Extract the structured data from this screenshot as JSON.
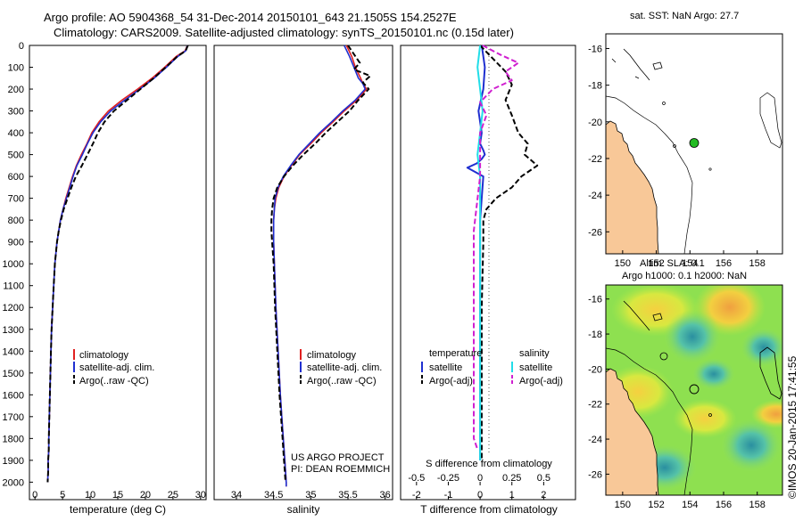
{
  "header": {
    "title_line1": "Argo profile: AO 5904368_54 31-Dec-2014 20150101_643 21.1505S 154.2527E",
    "title_line2": "Climatology: CARS2009. Satellite-adjusted climatology: synTS_20150101.nc (0.15d later)"
  },
  "imos_stamp": "©IMOS 20-Jan-2015 17:41:55",
  "colors": {
    "climatology": "#e02020",
    "satellite": "#1f2fd0",
    "argo": "#000000",
    "sal_satellite": "#22dde8",
    "sal_argo": "#d020d0",
    "land": "#f8c898",
    "marker": "#22bb22"
  },
  "chart_data": [
    {
      "id": "temperature",
      "type": "line",
      "xlabel": "temperature (deg C)",
      "ylabel": "",
      "xlim": [
        -1,
        31
      ],
      "ylim": [
        2080,
        0
      ],
      "xticks": [
        0,
        5,
        10,
        15,
        20,
        25,
        30
      ],
      "yticks": [
        0,
        100,
        200,
        300,
        400,
        500,
        600,
        700,
        800,
        900,
        1000,
        1100,
        1200,
        1300,
        1400,
        1500,
        1600,
        1700,
        1800,
        1900,
        2000
      ],
      "legend": [
        "climatology",
        "satellite-adj. clim.",
        "Argo(..raw -QC)"
      ],
      "legend_position": "lower-right",
      "series": [
        {
          "name": "climatology",
          "style": "solid",
          "x": [
            27.6,
            27.2,
            25.6,
            23.5,
            21.2,
            18.6,
            15.8,
            13.3,
            11.6,
            10.3,
            9.4,
            8.4,
            7.5,
            6.8,
            6.2,
            5.6,
            5.1,
            4.6,
            4.3,
            4.0,
            3.8,
            3.6,
            3.4,
            3.2,
            3.0,
            2.9,
            2.8,
            2.7,
            2.6,
            2.5,
            2.5,
            2.4,
            2.4,
            2.3
          ],
          "y": [
            0,
            25,
            50,
            100,
            150,
            200,
            250,
            300,
            350,
            400,
            450,
            500,
            550,
            600,
            650,
            700,
            750,
            800,
            850,
            900,
            950,
            1000,
            1100,
            1200,
            1300,
            1400,
            1500,
            1600,
            1700,
            1800,
            1850,
            1900,
            1950,
            2000
          ]
        },
        {
          "name": "satellite-adj. clim.",
          "style": "solid",
          "x": [
            27.6,
            27.3,
            25.9,
            23.8,
            21.6,
            19.0,
            16.3,
            13.7,
            11.9,
            10.5,
            9.5,
            8.6,
            7.6,
            6.9,
            6.3,
            5.7,
            5.1,
            4.6,
            4.3,
            4.0,
            3.8,
            3.6,
            3.4,
            3.2,
            3.0,
            2.9,
            2.8,
            2.7,
            2.6,
            2.5,
            2.5,
            2.4,
            2.4,
            2.3
          ],
          "y": [
            0,
            25,
            50,
            100,
            150,
            200,
            250,
            300,
            350,
            400,
            450,
            500,
            550,
            600,
            650,
            700,
            750,
            800,
            850,
            900,
            950,
            1000,
            1100,
            1200,
            1300,
            1400,
            1500,
            1600,
            1700,
            1800,
            1850,
            1900,
            1950,
            2000
          ]
        },
        {
          "name": "Argo(..raw -QC)",
          "style": "dashed",
          "x": [
            27.7,
            27.3,
            25.8,
            23.7,
            21.5,
            19.1,
            16.7,
            14.3,
            12.6,
            11.4,
            10.5,
            9.5,
            8.5,
            7.4,
            6.6,
            5.9,
            5.2,
            4.7,
            4.3,
            4.0,
            3.8,
            3.6,
            3.4,
            3.2,
            3.0,
            2.9,
            2.8,
            2.7,
            2.6,
            2.5,
            2.5,
            2.4,
            2.4,
            2.3
          ],
          "y": [
            0,
            25,
            50,
            100,
            150,
            200,
            250,
            300,
            350,
            400,
            450,
            500,
            550,
            600,
            650,
            700,
            750,
            800,
            850,
            900,
            950,
            1000,
            1100,
            1200,
            1300,
            1400,
            1500,
            1600,
            1700,
            1800,
            1850,
            1900,
            1950,
            2000
          ]
        }
      ]
    },
    {
      "id": "salinity",
      "type": "line",
      "xlabel": "salinity",
      "ylabel": "",
      "xlim": [
        33.7,
        36.1
      ],
      "ylim": [
        2080,
        0
      ],
      "xticks": [
        34,
        34.5,
        35,
        35.5,
        36
      ],
      "legend": [
        "climatology",
        "satellite-adj. clim.",
        "Argo(..raw -QC)"
      ],
      "legend_position": "lower-right",
      "annotation": [
        "US ARGO PROJECT",
        "PI: DEAN ROEMMICH"
      ],
      "series": [
        {
          "name": "climatology",
          "style": "solid",
          "x": [
            35.48,
            35.55,
            35.6,
            35.67,
            35.7,
            35.75,
            35.62,
            35.45,
            35.3,
            35.14,
            35.0,
            34.85,
            34.74,
            34.64,
            34.57,
            34.53,
            34.51,
            34.5,
            34.5,
            34.5,
            34.51,
            34.53,
            34.56,
            34.59,
            34.61,
            34.63,
            34.65,
            34.66,
            34.67,
            34.67
          ],
          "y": [
            0,
            50,
            100,
            150,
            175,
            200,
            250,
            300,
            350,
            400,
            450,
            500,
            550,
            600,
            650,
            700,
            750,
            800,
            850,
            900,
            1000,
            1200,
            1400,
            1600,
            1700,
            1800,
            1900,
            1950,
            2000,
            2020
          ]
        },
        {
          "name": "satellite-adj. clim.",
          "style": "solid",
          "x": [
            35.45,
            35.52,
            35.58,
            35.64,
            35.7,
            35.73,
            35.6,
            35.43,
            35.28,
            35.12,
            34.98,
            34.84,
            34.73,
            34.63,
            34.56,
            34.52,
            34.51,
            34.5,
            34.5,
            34.5,
            34.51,
            34.53,
            34.56,
            34.59,
            34.61,
            34.63,
            34.65,
            34.66,
            34.67,
            34.67
          ],
          "y": [
            0,
            50,
            100,
            150,
            175,
            200,
            250,
            300,
            350,
            400,
            450,
            500,
            550,
            600,
            650,
            700,
            750,
            800,
            850,
            900,
            1000,
            1200,
            1400,
            1600,
            1700,
            1800,
            1900,
            1950,
            2000,
            2020
          ]
        },
        {
          "name": "Argo(..raw -QC)",
          "style": "dashed",
          "x": [
            35.5,
            35.66,
            35.58,
            35.8,
            35.7,
            35.78,
            35.64,
            35.52,
            35.36,
            35.2,
            35.06,
            34.9,
            34.76,
            34.64,
            34.55,
            34.5,
            34.48,
            34.47,
            34.47,
            34.48,
            34.5,
            34.52,
            34.55,
            34.58,
            34.6,
            34.62,
            34.64,
            34.65,
            34.66
          ],
          "y": [
            0,
            80,
            110,
            140,
            170,
            200,
            250,
            300,
            350,
            400,
            450,
            500,
            550,
            600,
            650,
            700,
            750,
            800,
            850,
            900,
            1000,
            1200,
            1400,
            1600,
            1700,
            1800,
            1900,
            1950,
            2000
          ]
        }
      ]
    },
    {
      "id": "differences",
      "type": "line",
      "xlabel": "T difference from climatology",
      "xlabel_top": "S difference from climatology",
      "xlim": [
        -2.5,
        3.0
      ],
      "ylim": [
        2080,
        0
      ],
      "xticks": [
        -2,
        -1,
        0,
        1,
        2
      ],
      "xticks_s": [
        -0.5,
        -0.25,
        0,
        0.25,
        0.5
      ],
      "legend_temperature_title": "temperature",
      "legend_salinity_title": "salinity",
      "legend_temperature": [
        "satellite",
        "Argo(-adj)"
      ],
      "legend_salinity": [
        "satellite",
        "Argo(-adj)"
      ],
      "series": [
        {
          "name": "temperature satellite",
          "style": "solid",
          "x": [
            0.05,
            0.1,
            0.15,
            0.1,
            -0.05,
            0.05,
            0.0,
            0.1,
            0.15,
            0.05,
            -0.1,
            -0.4,
            0.1,
            0.05,
            0.0,
            0.0,
            0.0,
            0.0,
            0.0,
            0.0
          ],
          "y": [
            0,
            50,
            100,
            200,
            300,
            400,
            450,
            480,
            500,
            520,
            540,
            560,
            600,
            700,
            800,
            1000,
            1200,
            1500,
            1800,
            1900
          ]
        },
        {
          "name": "temperature Argo(-adj)",
          "style": "dashed",
          "x": [
            0.0,
            0.4,
            0.8,
            1.0,
            0.8,
            1.0,
            1.2,
            1.5,
            1.4,
            1.8,
            1.3,
            1.0,
            0.5,
            0.2,
            0.1,
            0.1,
            0.05,
            0.05,
            0.05,
            0.05
          ],
          "y": [
            0,
            60,
            120,
            180,
            250,
            320,
            400,
            450,
            500,
            550,
            600,
            650,
            700,
            750,
            800,
            900,
            1200,
            1500,
            1800,
            1900
          ]
        },
        {
          "name": "salinity satellite",
          "style": "solid",
          "x": [
            0.0,
            -0.02,
            0.0,
            0.02,
            0.0,
            -0.02,
            0.0,
            0.0,
            0.0,
            0.0,
            0.0
          ],
          "y": [
            0,
            100,
            200,
            300,
            400,
            500,
            600,
            800,
            1200,
            1600,
            1900
          ]
        },
        {
          "name": "salinity Argo(-adj)",
          "style": "dashed",
          "x": [
            0.02,
            0.15,
            0.3,
            0.2,
            0.25,
            0.1,
            0.0,
            0.05,
            0.0,
            0.0,
            -0.05,
            -0.05,
            -0.05,
            -0.02
          ],
          "y": [
            0,
            40,
            80,
            120,
            160,
            200,
            260,
            320,
            400,
            600,
            850,
            1300,
            1800,
            1850
          ]
        }
      ]
    },
    {
      "id": "sst-map",
      "type": "scatter",
      "title": "sat. SST: NaN Argo: 27.7",
      "xlim": [
        149,
        159.5
      ],
      "ylim": [
        -27.2,
        -15.2
      ],
      "xticks": [
        150,
        152,
        154,
        156,
        158
      ],
      "yticks": [
        -16,
        -18,
        -20,
        -22,
        -24,
        -26
      ],
      "marker": {
        "x": 154.25,
        "y": -21.15
      }
    },
    {
      "id": "altimetry-map",
      "type": "heatmap",
      "title_line1": "Altim. SLA: 0.1",
      "title_line2": "Argo h1000: 0.1 h2000: NaN",
      "xlim": [
        149,
        159.5
      ],
      "ylim": [
        -27.2,
        -15.2
      ],
      "xticks": [
        150,
        152,
        154,
        156,
        158
      ],
      "yticks": [
        -16,
        -18,
        -20,
        -22,
        -24,
        -26
      ],
      "marker": {
        "x": 154.25,
        "y": -21.15
      }
    }
  ]
}
